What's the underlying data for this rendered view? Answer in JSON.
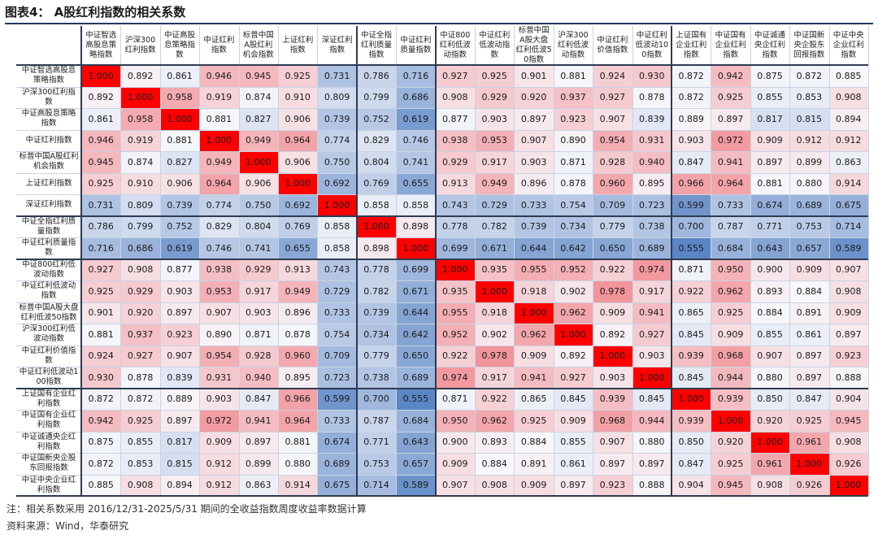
{
  "title": "图表4：  A股红利指数的相关系数",
  "note": "注：相关系数采用 2016/12/31-2025/5/31 期间的全收益指数周度收益率数据计算",
  "source": "资料来源：Wind，华泰研究",
  "colors": {
    "high": "#f2959b",
    "low": "#5b86c6",
    "mid": "#f7f7fb",
    "one": "#ff0000"
  },
  "chart_data": {
    "type": "heatmap",
    "title": "A股红利指数的相关系数",
    "col_labels": [
      "中证智选高股息策略指数",
      "沪深300红利指数",
      "中证高股息策略指数",
      "中证红利指数",
      "标普中国A股红利机会指数",
      "上证红利指数",
      "深证红利指数",
      "中证全指红利质量指数",
      "中证红利质量指数",
      "中证800红利低波动指数",
      "中证红利低波动指数",
      "标普中国A股大盘红利低波50指数",
      "沪深300红利低波动指数",
      "中证红利价值指数",
      "中证红利低波动100指数",
      "上证国有企业红利指数",
      "中证国有企业红利指数",
      "中证诚通央企红利指数",
      "中证国新央企股东回报指数",
      "中证中央企业红利指数"
    ],
    "row_labels": [
      "中证智选高股息策略指数",
      "沪深300红利指数",
      "中证高股息策略指数",
      "中证红利指数",
      "标普中国A股红利机会指数",
      "上证红利指数",
      "深证红利指数",
      "中证全指红利质量指数",
      "中证红利质量指数",
      "中证800红利低波动指数",
      "中证红利低波动指数",
      "标普中国A股大盘红利低波50指数",
      "沪深300红利低波动指数",
      "中证红利价值指数",
      "中证红利低波动100指数",
      "上证国有企业红利指数",
      "中证国有企业红利指数",
      "中证诚通央企红利指数",
      "中证国新央企股东回报指数",
      "中证中央企业红利指数"
    ],
    "values": [
      [
        1.0,
        0.892,
        0.861,
        0.946,
        0.945,
        0.925,
        0.731,
        0.786,
        0.716,
        0.927,
        0.925,
        0.901,
        0.881,
        0.924,
        0.93,
        0.872,
        0.942,
        0.875,
        0.872,
        0.885
      ],
      [
        0.892,
        1.0,
        0.958,
        0.919,
        0.874,
        0.91,
        0.809,
        0.799,
        0.686,
        0.908,
        0.929,
        0.92,
        0.937,
        0.927,
        0.878,
        0.872,
        0.925,
        0.855,
        0.853,
        0.908
      ],
      [
        0.861,
        0.958,
        1.0,
        0.881,
        0.827,
        0.906,
        0.739,
        0.752,
        0.619,
        0.877,
        0.903,
        0.897,
        0.923,
        0.907,
        0.839,
        0.889,
        0.897,
        0.817,
        0.815,
        0.894
      ],
      [
        0.946,
        0.919,
        0.881,
        1.0,
        0.949,
        0.964,
        0.774,
        0.829,
        0.746,
        0.938,
        0.953,
        0.907,
        0.89,
        0.954,
        0.931,
        0.903,
        0.972,
        0.909,
        0.912,
        0.912
      ],
      [
        0.945,
        0.874,
        0.827,
        0.949,
        1.0,
        0.906,
        0.75,
        0.804,
        0.741,
        0.929,
        0.917,
        0.903,
        0.871,
        0.928,
        0.94,
        0.847,
        0.941,
        0.897,
        0.899,
        0.863
      ],
      [
        0.925,
        0.91,
        0.906,
        0.964,
        0.906,
        1.0,
        0.692,
        0.769,
        0.655,
        0.913,
        0.949,
        0.896,
        0.878,
        0.96,
        0.895,
        0.966,
        0.964,
        0.881,
        0.88,
        0.914
      ],
      [
        0.731,
        0.809,
        0.739,
        0.774,
        0.75,
        0.692,
        1.0,
        0.858,
        0.858,
        0.743,
        0.729,
        0.733,
        0.754,
        0.709,
        0.723,
        0.599,
        0.733,
        0.674,
        0.689,
        0.675
      ],
      [
        0.786,
        0.799,
        0.752,
        0.829,
        0.804,
        0.769,
        0.858,
        1.0,
        0.898,
        0.778,
        0.782,
        0.739,
        0.734,
        0.779,
        0.738,
        0.7,
        0.787,
        0.771,
        0.753,
        0.714
      ],
      [
        0.716,
        0.686,
        0.619,
        0.746,
        0.741,
        0.655,
        0.858,
        0.898,
        1.0,
        0.699,
        0.671,
        0.644,
        0.642,
        0.65,
        0.689,
        0.555,
        0.684,
        0.643,
        0.657,
        0.589
      ],
      [
        0.927,
        0.908,
        0.877,
        0.938,
        0.929,
        0.913,
        0.743,
        0.778,
        0.699,
        1.0,
        0.935,
        0.955,
        0.952,
        0.922,
        0.974,
        0.871,
        0.95,
        0.9,
        0.909,
        0.907
      ],
      [
        0.925,
        0.929,
        0.903,
        0.953,
        0.917,
        0.949,
        0.729,
        0.782,
        0.671,
        0.935,
        1.0,
        0.918,
        0.902,
        0.978,
        0.917,
        0.922,
        0.962,
        0.893,
        0.884,
        0.908
      ],
      [
        0.901,
        0.92,
        0.897,
        0.907,
        0.903,
        0.896,
        0.733,
        0.739,
        0.644,
        0.955,
        0.918,
        1.0,
        0.962,
        0.909,
        0.941,
        0.865,
        0.925,
        0.884,
        0.891,
        0.909
      ],
      [
        0.881,
        0.937,
        0.923,
        0.89,
        0.871,
        0.878,
        0.754,
        0.734,
        0.642,
        0.952,
        0.902,
        0.962,
        1.0,
        0.892,
        0.927,
        0.845,
        0.909,
        0.855,
        0.861,
        0.897
      ],
      [
        0.924,
        0.927,
        0.907,
        0.954,
        0.928,
        0.96,
        0.709,
        0.779,
        0.65,
        0.922,
        0.978,
        0.909,
        0.892,
        1.0,
        0.903,
        0.939,
        0.968,
        0.907,
        0.897,
        0.923
      ],
      [
        0.93,
        0.878,
        0.839,
        0.931,
        0.94,
        0.895,
        0.723,
        0.738,
        0.689,
        0.974,
        0.917,
        0.941,
        0.927,
        0.903,
        1.0,
        0.845,
        0.944,
        0.88,
        0.897,
        0.888
      ],
      [
        0.872,
        0.872,
        0.889,
        0.903,
        0.847,
        0.966,
        0.599,
        0.7,
        0.555,
        0.871,
        0.922,
        0.865,
        0.845,
        0.939,
        0.845,
        1.0,
        0.939,
        0.85,
        0.847,
        0.904
      ],
      [
        0.942,
        0.925,
        0.897,
        0.972,
        0.941,
        0.964,
        0.733,
        0.787,
        0.684,
        0.95,
        0.962,
        0.925,
        0.909,
        0.968,
        0.944,
        0.939,
        1.0,
        0.92,
        0.925,
        0.945
      ],
      [
        0.875,
        0.855,
        0.817,
        0.909,
        0.897,
        0.881,
        0.674,
        0.771,
        0.643,
        0.9,
        0.893,
        0.884,
        0.855,
        0.907,
        0.88,
        0.85,
        0.92,
        1.0,
        0.961,
        0.908
      ],
      [
        0.872,
        0.853,
        0.815,
        0.912,
        0.899,
        0.88,
        0.689,
        0.753,
        0.657,
        0.909,
        0.884,
        0.891,
        0.861,
        0.897,
        0.897,
        0.847,
        0.925,
        0.961,
        1.0,
        0.926
      ],
      [
        0.885,
        0.908,
        0.894,
        0.912,
        0.863,
        0.914,
        0.675,
        0.714,
        0.589,
        0.907,
        0.908,
        0.909,
        0.897,
        0.923,
        0.888,
        0.904,
        0.945,
        0.908,
        0.926,
        1.0
      ]
    ],
    "value_range": [
      0.555,
      1.0
    ],
    "group_breaks_after": [
      6,
      8,
      14
    ]
  }
}
